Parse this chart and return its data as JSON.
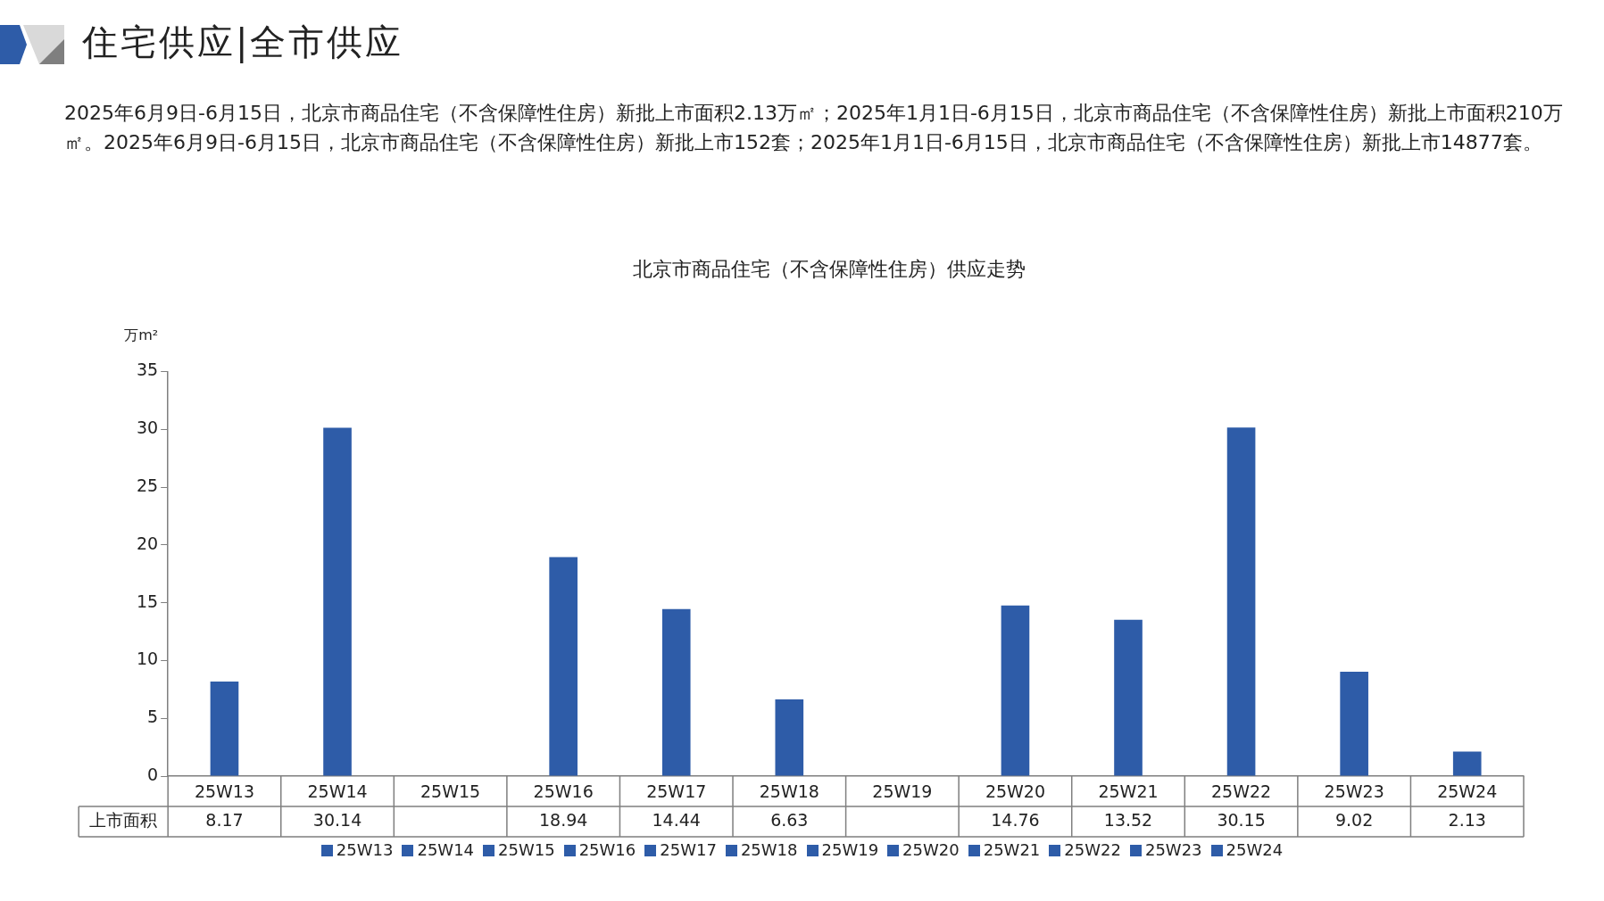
{
  "chart_data": {
    "type": "bar",
    "title": "北京市商品住宅（不含保障性住房）供应走势",
    "annotations": [
      "住宅供应|全市供应",
      "2025年6月9日-6月15日，北京市商品住宅（不含保障性住房）新批上市面积2.13万㎡；2025年1月1日-6月15日，北京市商品住宅（不含保障性住房）新批上市面积210万㎡。2025年6月9日-6月15日，北京市商品住宅（不含保障性住房）新批上市152套；2025年1月1日-6月15日，北京市商品住宅（不含保障性住房）新批上市14877套。"
    ],
    "ylabel": "万m²",
    "categories": [
      "25W13",
      "25W14",
      "25W15",
      "25W16",
      "25W17",
      "25W18",
      "25W19",
      "25W20",
      "25W21",
      "25W22",
      "25W23",
      "25W24"
    ],
    "series": [
      {
        "name": "上市面积",
        "colors": [
          "#2e5ca8",
          "#2e5ca8",
          "#2e5ca8",
          "#2e5ca8",
          "#2e5ca8",
          "#2e5ca8",
          "#2e5ca8",
          "#2e5ca8",
          "#2e5ca8",
          "#2e5ca8",
          "#2e5ca8",
          "#2e5ca8"
        ],
        "values": [
          8.17,
          30.14,
          null,
          18.94,
          14.44,
          6.63,
          null,
          14.76,
          13.52,
          30.15,
          9.02,
          2.13
        ]
      }
    ],
    "ylim": [
      0,
      35
    ],
    "yticks": [
      0,
      5,
      10,
      15,
      20,
      25,
      30,
      35
    ],
    "data_labels": true,
    "legend": "bottom"
  }
}
